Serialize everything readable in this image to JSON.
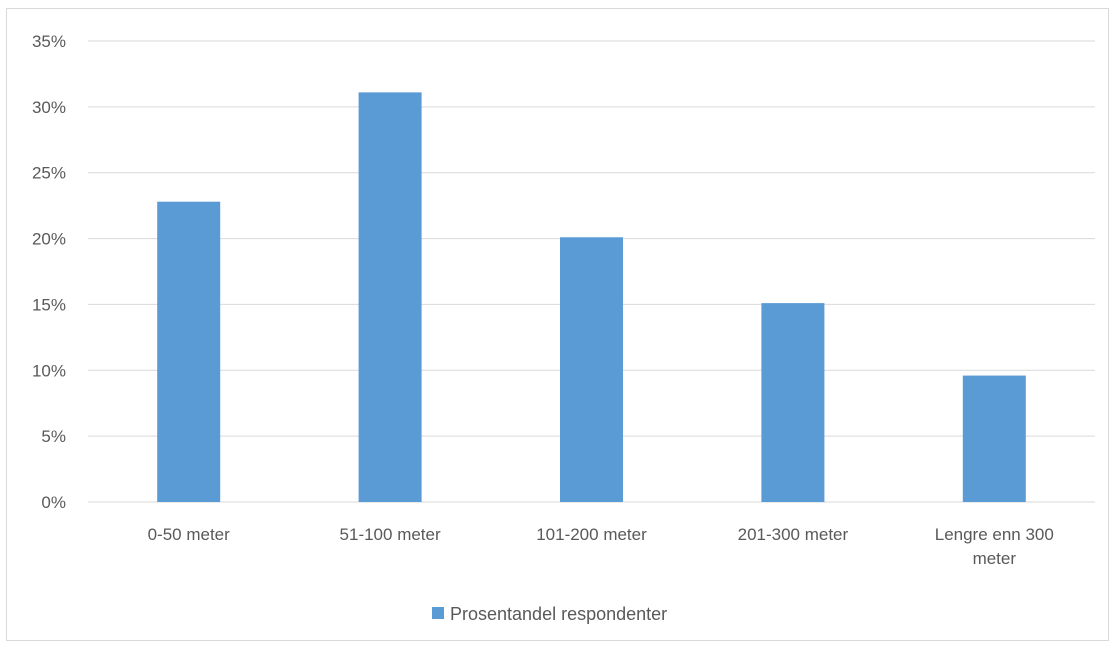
{
  "chart_data": {
    "type": "bar",
    "categories": [
      "0-50 meter",
      "51-100 meter",
      "101-200 meter",
      "201-300 meter",
      "Lengre enn 300 meter"
    ],
    "category_label_lines": [
      [
        "0-50 meter"
      ],
      [
        "51-100 meter"
      ],
      [
        "101-200 meter"
      ],
      [
        "201-300 meter"
      ],
      [
        "Lengre enn 300",
        "meter"
      ]
    ],
    "series": [
      {
        "name": "Prosentandel respondenter",
        "values": [
          22.8,
          31.1,
          20.1,
          15.1,
          9.6
        ],
        "color": "#5b9bd5"
      }
    ],
    "y_ticks": [
      "0%",
      "5%",
      "10%",
      "15%",
      "20%",
      "25%",
      "30%",
      "35%"
    ],
    "ylim": [
      0,
      35
    ],
    "y_unit": "%",
    "grid": true,
    "legend_position": "bottom",
    "title": "",
    "xlabel": "",
    "ylabel": ""
  }
}
